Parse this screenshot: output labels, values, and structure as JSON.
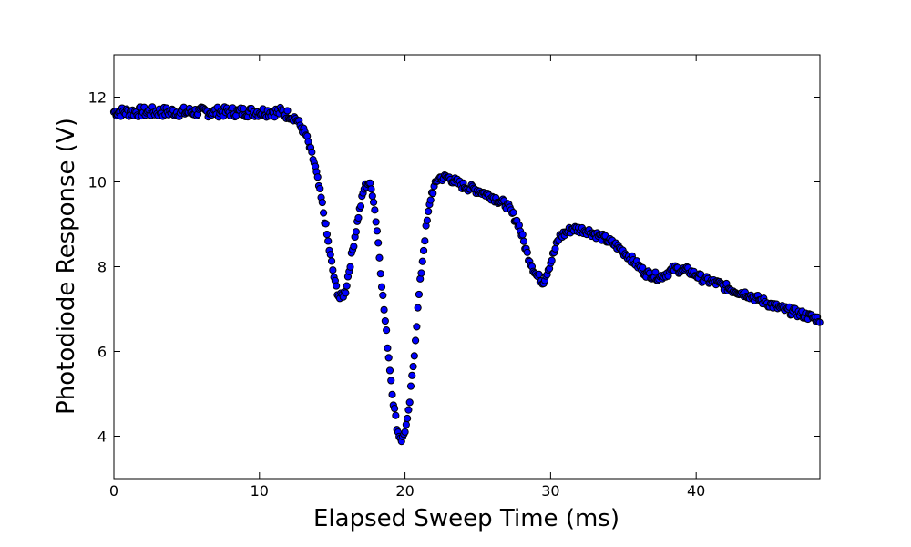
{
  "chart_data": {
    "type": "scatter",
    "title": "",
    "xlabel": "Elapsed Sweep Time (ms)",
    "ylabel": "Photodiode Response (V)",
    "xlim": [
      0,
      48.5
    ],
    "ylim": [
      3,
      13
    ],
    "xticks": [
      0,
      10,
      20,
      30,
      40
    ],
    "yticks": [
      4,
      6,
      8,
      10,
      12
    ],
    "grid": false,
    "legend": "none",
    "marker_color": "#0000ff",
    "marker_edge_color": "#000000",
    "curve_points": [
      [
        0,
        11.65
      ],
      [
        11.5,
        11.65
      ],
      [
        12.5,
        11.5
      ],
      [
        13.2,
        11.1
      ],
      [
        13.8,
        10.4
      ],
      [
        14.3,
        9.5
      ],
      [
        14.8,
        8.4
      ],
      [
        15.2,
        7.6
      ],
      [
        15.5,
        7.25
      ],
      [
        15.9,
        7.4
      ],
      [
        16.3,
        8.2
      ],
      [
        16.8,
        9.2
      ],
      [
        17.2,
        9.85
      ],
      [
        17.5,
        10.0
      ],
      [
        17.8,
        9.7
      ],
      [
        18.1,
        8.8
      ],
      [
        18.5,
        7.2
      ],
      [
        18.9,
        5.8
      ],
      [
        19.2,
        4.8
      ],
      [
        19.5,
        4.1
      ],
      [
        19.8,
        3.9
      ],
      [
        20.2,
        4.4
      ],
      [
        20.6,
        5.8
      ],
      [
        21.0,
        7.5
      ],
      [
        21.4,
        8.8
      ],
      [
        21.8,
        9.7
      ],
      [
        22.3,
        10.1
      ],
      [
        23.0,
        10.1
      ],
      [
        24.0,
        9.9
      ],
      [
        25.0,
        9.8
      ],
      [
        26.0,
        9.65
      ],
      [
        27.0,
        9.45
      ],
      [
        27.8,
        9.0
      ],
      [
        28.4,
        8.3
      ],
      [
        29.0,
        7.8
      ],
      [
        29.5,
        7.65
      ],
      [
        30.0,
        8.1
      ],
      [
        30.6,
        8.7
      ],
      [
        31.5,
        8.9
      ],
      [
        32.5,
        8.85
      ],
      [
        33.5,
        8.7
      ],
      [
        34.5,
        8.5
      ],
      [
        35.5,
        8.2
      ],
      [
        36.5,
        7.85
      ],
      [
        37.5,
        7.75
      ],
      [
        38.5,
        7.95
      ],
      [
        39.5,
        7.9
      ],
      [
        40.5,
        7.7
      ],
      [
        41.5,
        7.6
      ],
      [
        42.5,
        7.45
      ],
      [
        43.5,
        7.35
      ],
      [
        44.5,
        7.2
      ],
      [
        45.5,
        7.05
      ],
      [
        46.5,
        6.95
      ],
      [
        47.5,
        6.85
      ],
      [
        48.5,
        6.75
      ]
    ]
  }
}
